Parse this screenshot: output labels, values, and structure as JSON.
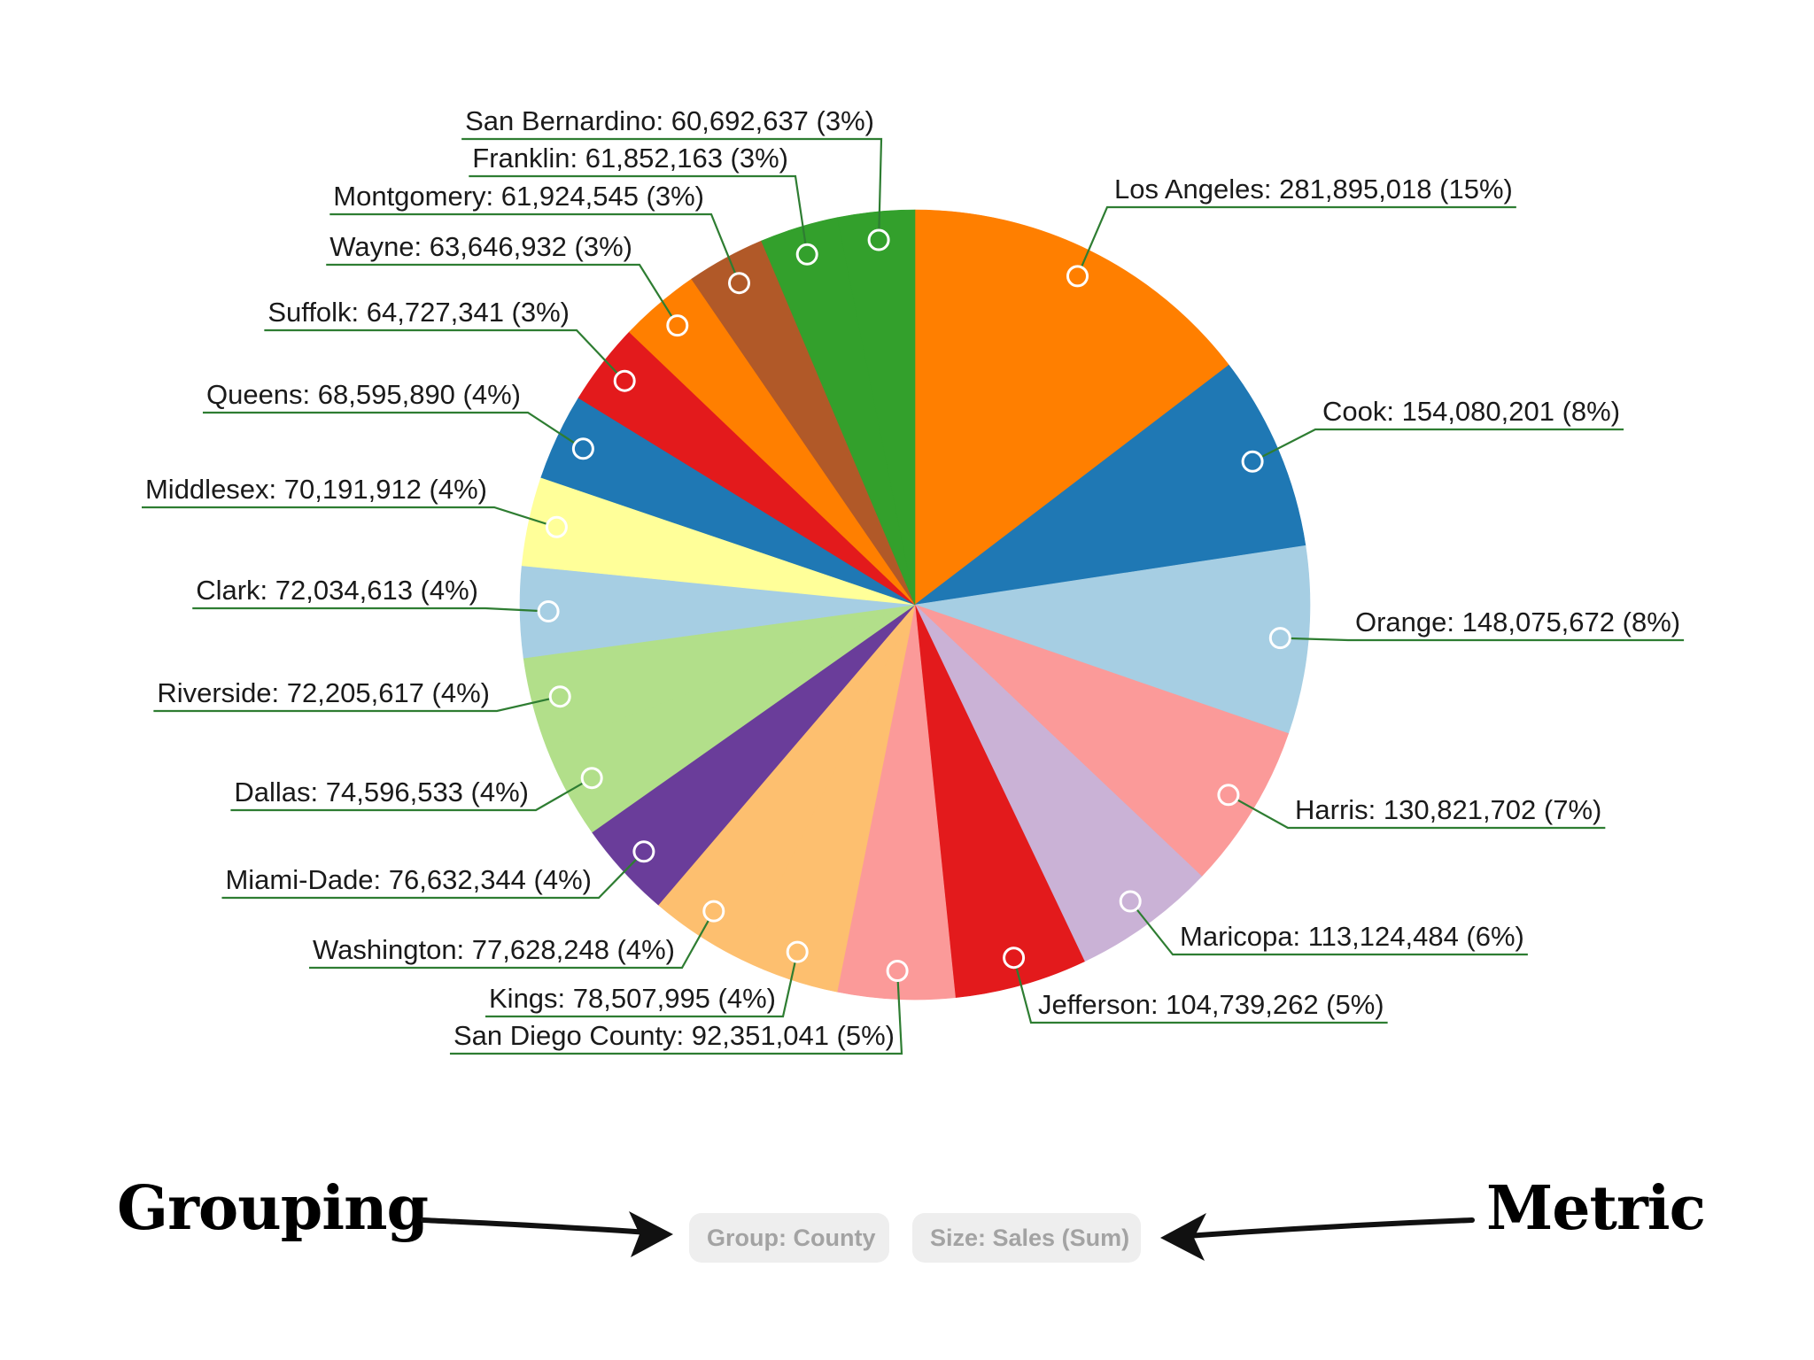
{
  "chart_data": {
    "type": "pie",
    "slices": [
      {
        "label": "Los Angeles",
        "value": 281895018,
        "percent": "15%",
        "color": "#ff7f00"
      },
      {
        "label": "Cook",
        "value": 154080201,
        "percent": "8%",
        "color": "#1f78b4"
      },
      {
        "label": "Orange",
        "value": 148075672,
        "percent": "8%",
        "color": "#a6cee3"
      },
      {
        "label": "Harris",
        "value": 130821702,
        "percent": "7%",
        "color": "#fb9a99"
      },
      {
        "label": "Maricopa",
        "value": 113124484,
        "percent": "6%",
        "color": "#cab2d6"
      },
      {
        "label": "Jefferson",
        "value": 104739262,
        "percent": "5%",
        "color": "#e31a1c"
      },
      {
        "label": "San Diego County",
        "value": 92351041,
        "percent": "5%",
        "color": "#fb9a99"
      },
      {
        "label": "Kings",
        "value": 78507995,
        "percent": "4%",
        "color": "#fdbf6f"
      },
      {
        "label": "Washington",
        "value": 77628248,
        "percent": "4%",
        "color": "#fdbf6f"
      },
      {
        "label": "Miami-Dade",
        "value": 76632344,
        "percent": "4%",
        "color": "#6a3d9a"
      },
      {
        "label": "Dallas",
        "value": 74596533,
        "percent": "4%",
        "color": "#b2df8a"
      },
      {
        "label": "Riverside",
        "value": 72205617,
        "percent": "4%",
        "color": "#b2df8a"
      },
      {
        "label": "Clark",
        "value": 72034613,
        "percent": "4%",
        "color": "#a6cee3"
      },
      {
        "label": "Middlesex",
        "value": 70191912,
        "percent": "4%",
        "color": "#ffff99"
      },
      {
        "label": "Queens",
        "value": 68595890,
        "percent": "4%",
        "color": "#1f78b4"
      },
      {
        "label": "Suffolk",
        "value": 64727341,
        "percent": "3%",
        "color": "#e31a1c"
      },
      {
        "label": "Wayne",
        "value": 63646932,
        "percent": "3%",
        "color": "#ff7f00"
      },
      {
        "label": "Montgomery",
        "value": 61924545,
        "percent": "3%",
        "color": "#b15928"
      },
      {
        "label": "Franklin",
        "value": 61852163,
        "percent": "3%",
        "color": "#33a02c"
      },
      {
        "label": "San Bernardino",
        "value": 60692637,
        "percent": "3%",
        "color": "#33a02c"
      }
    ]
  },
  "controls": {
    "group_label": "Group: County",
    "size_label": "Size: Sales (Sum)"
  },
  "annotations": {
    "grouping": "Grouping",
    "metric": "Metric"
  },
  "colors": {
    "leader_line": "#2e7d32",
    "pill_bg": "#eeeeee",
    "pill_text": "#a3a3a3"
  }
}
